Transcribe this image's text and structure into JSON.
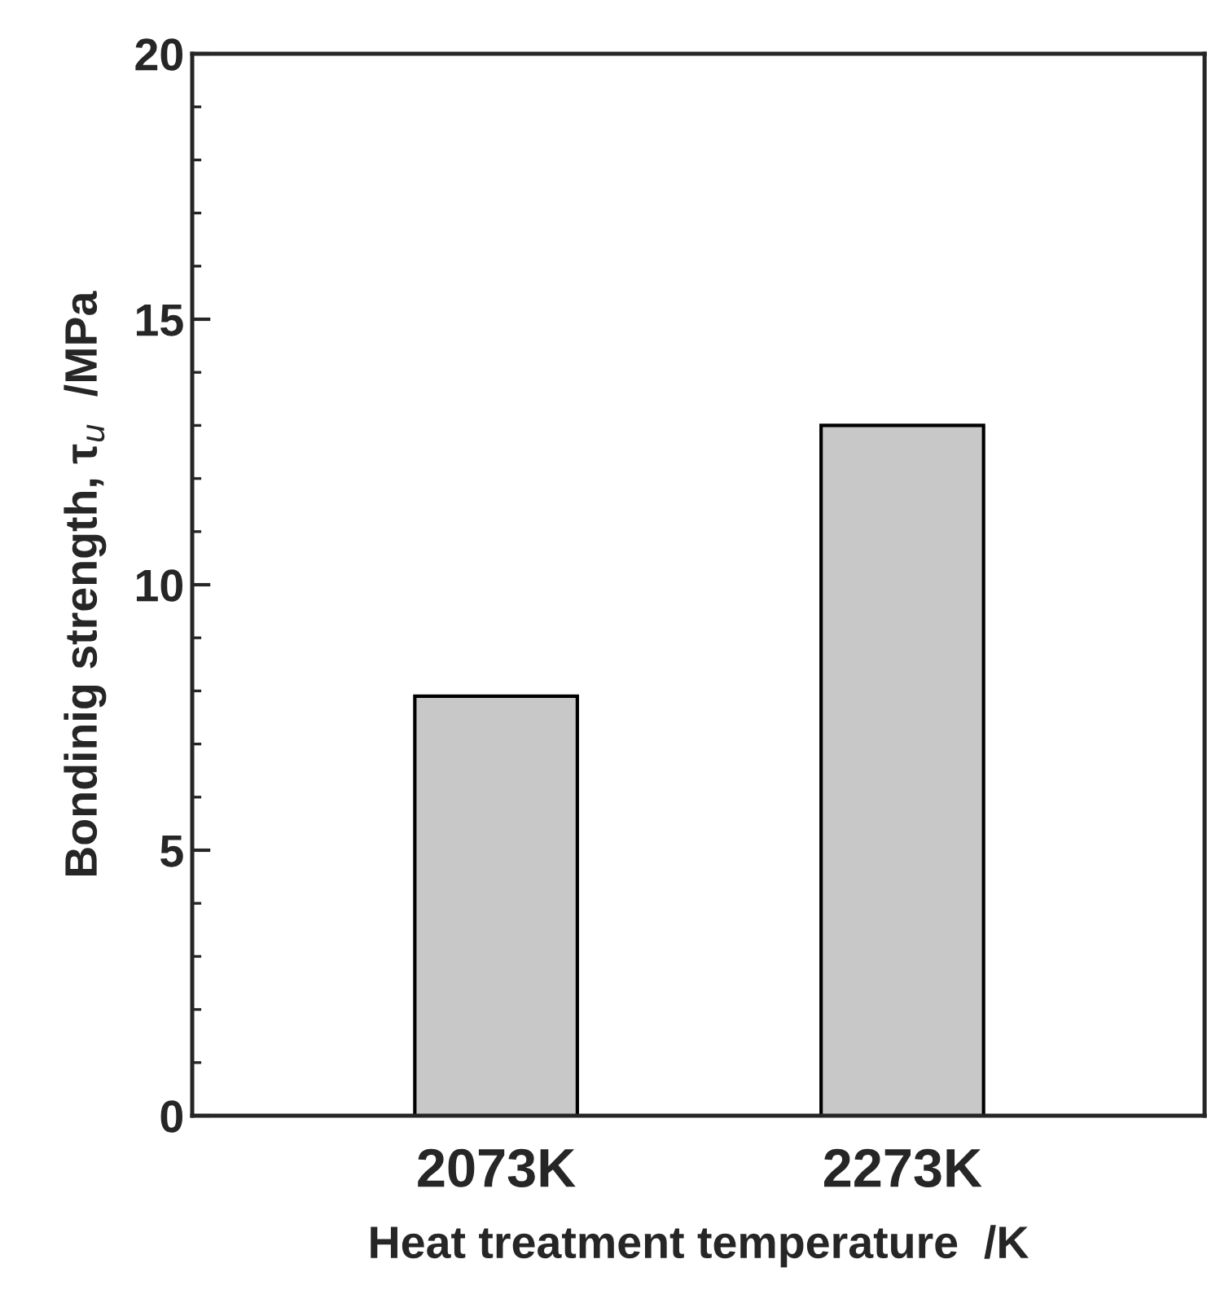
{
  "chart_data": {
    "type": "bar",
    "categories": [
      "2073K",
      "2273K"
    ],
    "values": [
      7.9,
      13.0
    ],
    "color": "#c8c8c8",
    "xlabel": "Heat treatment temperature  /K",
    "ylabel": "Bondinig strength, τ$_{u}$  /MPa",
    "ylim": [
      0,
      20
    ],
    "yticks": [
      0,
      5,
      10,
      15,
      20
    ],
    "grid": false,
    "legend": false
  }
}
